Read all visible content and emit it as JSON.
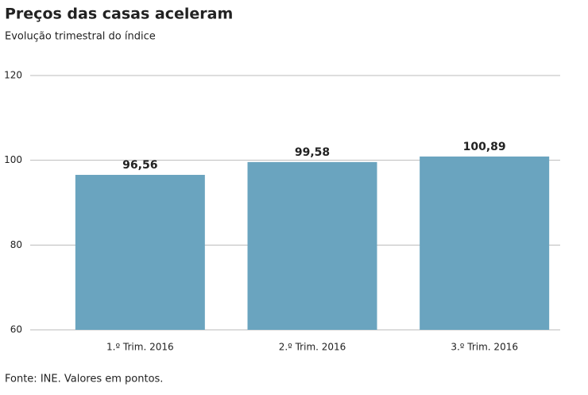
{
  "chart_data": {
    "type": "bar",
    "title": "Preços das casas aceleram",
    "subtitle": "Evolução trimestral do índice",
    "categories": [
      "1.º Trim. 2016",
      "2.º Trim. 2016",
      "3.º Trim. 2016"
    ],
    "values": [
      96.56,
      99.58,
      100.89
    ],
    "value_labels": [
      "96,56",
      "99,58",
      "100,89"
    ],
    "color": "#6aa4bf",
    "ylim": [
      60,
      120
    ],
    "yticks": [
      60,
      80,
      100,
      120
    ],
    "grid": true,
    "source": "Fonte: INE. Valores em pontos."
  }
}
